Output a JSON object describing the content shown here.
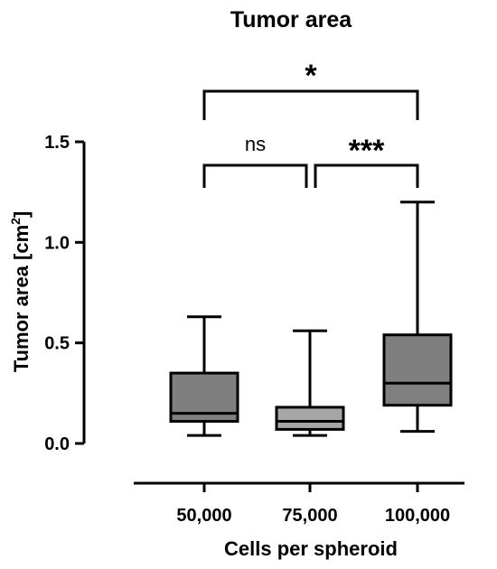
{
  "chart_data": {
    "type": "box",
    "title": "Tumor area",
    "xlabel": "Cells per spheroid",
    "ylabel": "Tumor area [cm",
    "ylabel_superscript": "2",
    "ylabel_suffix": "]",
    "ylim": [
      0,
      1.5
    ],
    "yticks": [
      0.0,
      0.5,
      1.0,
      1.5
    ],
    "ytick_labels": [
      "0.0",
      "0.5",
      "1.0",
      "1.5"
    ],
    "categories": [
      "50,000",
      "75,000",
      "100,000"
    ],
    "boxes": [
      {
        "category": "50,000",
        "min": 0.04,
        "q1": 0.11,
        "median": 0.15,
        "q3": 0.35,
        "max": 0.63,
        "color": "#7f7f7f"
      },
      {
        "category": "75,000",
        "min": 0.04,
        "q1": 0.07,
        "median": 0.11,
        "q3": 0.18,
        "max": 0.56,
        "color": "#a6a6a6"
      },
      {
        "category": "100,000",
        "min": 0.06,
        "q1": 0.19,
        "median": 0.3,
        "q3": 0.54,
        "max": 1.2,
        "color": "#7f7f7f"
      }
    ],
    "significance": [
      {
        "from": "50,000",
        "to": "75,000",
        "label": "ns"
      },
      {
        "from": "75,000",
        "to": "100,000",
        "label": "***"
      },
      {
        "from": "50,000",
        "to": "100,000",
        "label": "*"
      }
    ],
    "grid": false,
    "legend": "none"
  }
}
